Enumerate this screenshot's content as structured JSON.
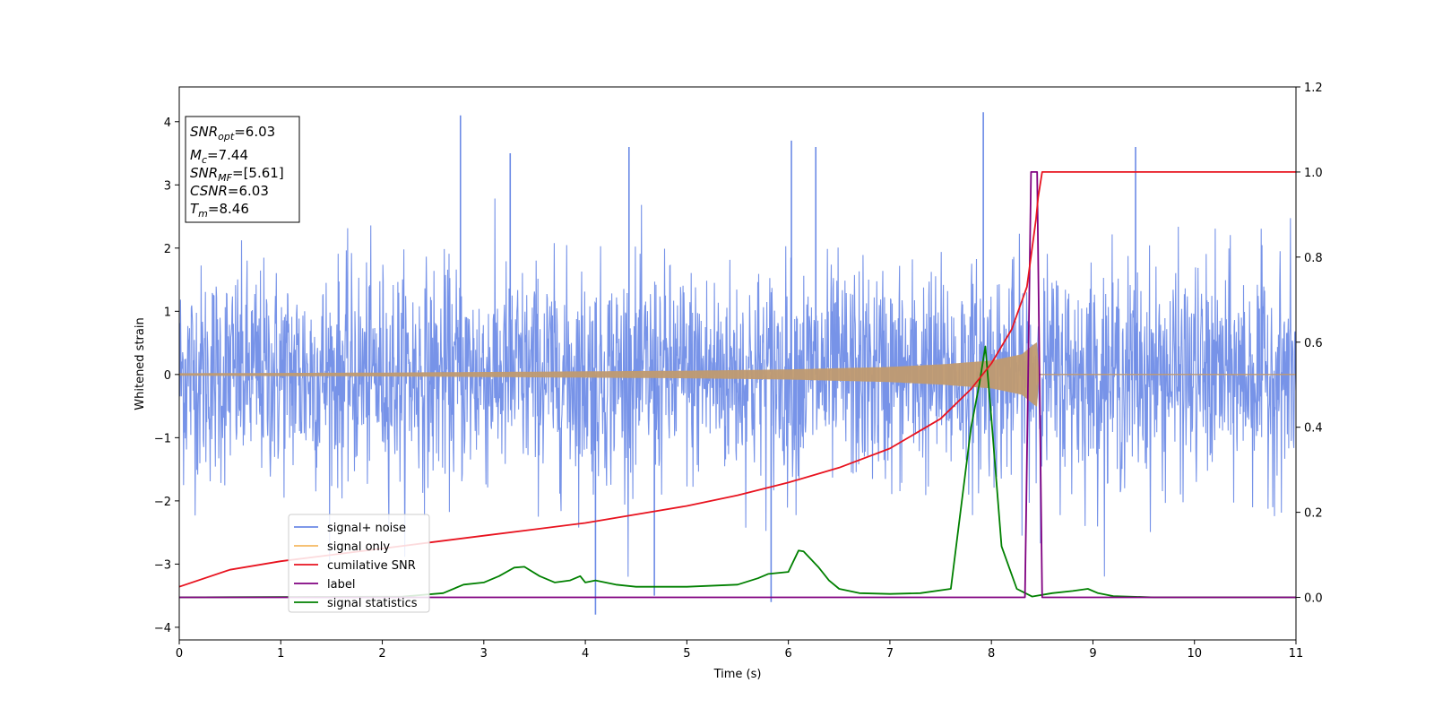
{
  "chart_data": {
    "type": "line",
    "xlabel": "Time (s)",
    "ylabel": "Whitened strain",
    "xlim": [
      0,
      11
    ],
    "ylim_left": [
      -4.2,
      4.55
    ],
    "ylim_right": [
      -0.1,
      1.2
    ],
    "x_ticks": [
      "0",
      "1",
      "2",
      "3",
      "4",
      "5",
      "6",
      "7",
      "8",
      "9",
      "10",
      "11"
    ],
    "y_left_ticks": [
      "4",
      "3",
      "2",
      "1",
      "0",
      "−1",
      "−2",
      "−3",
      "−4"
    ],
    "y_right_ticks": [
      "1.2",
      "1.0",
      "0.8",
      "0.6",
      "0.4",
      "0.2",
      "0.0"
    ],
    "info_box": {
      "snr_opt": {
        "name": "SNR",
        "sub": "opt",
        "value": "=6.03"
      },
      "mc": {
        "name": "M",
        "sub": "c",
        "value": "=7.44"
      },
      "snr_mf": {
        "name": "SNR",
        "sub": "MF",
        "value": "=[5.61]"
      },
      "csnr": {
        "name": "CSNR",
        "value": "=6.03"
      },
      "tm": {
        "name": "T",
        "sub": "m",
        "value": "=8.46"
      }
    },
    "legend": {
      "placement": "lower-left",
      "entries": [
        {
          "label": "signal+ noise",
          "color": "#6b8ae6"
        },
        {
          "label": "signal only",
          "color": "#f4b860"
        },
        {
          "label": "cumilative SNR",
          "color": "#e8131f"
        },
        {
          "label": "label",
          "color": "#800080"
        },
        {
          "label": "signal statistics",
          "color": "#008000"
        }
      ]
    },
    "series": [
      {
        "name": "signal+ noise",
        "axis": "left",
        "color": "#6b8ae6",
        "description_range": [
          -3.8,
          4.2
        ],
        "spikes": [
          [
            2.77,
            4.1
          ],
          [
            7.92,
            4.15
          ],
          [
            6.03,
            3.7
          ],
          [
            6.27,
            3.6
          ],
          [
            4.43,
            3.6
          ],
          [
            9.42,
            3.6
          ],
          [
            3.26,
            3.5
          ],
          [
            4.1,
            -3.8
          ],
          [
            5.83,
            -3.6
          ],
          [
            4.68,
            -3.5
          ]
        ]
      },
      {
        "name": "signal only",
        "axis": "left",
        "color": "#c09a70",
        "envelope": [
          [
            0,
            0.02
          ],
          [
            2,
            0.03
          ],
          [
            4,
            0.05
          ],
          [
            5,
            0.06
          ],
          [
            6,
            0.08
          ],
          [
            7,
            0.12
          ],
          [
            7.5,
            0.16
          ],
          [
            8.0,
            0.22
          ],
          [
            8.3,
            0.32
          ],
          [
            8.42,
            0.48
          ],
          [
            8.46,
            0.52
          ],
          [
            8.47,
            0.0
          ],
          [
            11,
            0.0
          ]
        ]
      },
      {
        "name": "cumilative SNR",
        "axis": "right",
        "color": "#e8131f",
        "x": [
          0,
          0.5,
          1,
          1.5,
          2,
          2.5,
          3,
          3.5,
          4,
          4.5,
          5,
          5.5,
          6,
          6.5,
          7,
          7.5,
          7.8,
          8.0,
          8.2,
          8.35,
          8.44,
          8.46,
          8.5,
          9,
          10,
          11
        ],
        "y": [
          0.025,
          0.065,
          0.085,
          0.1,
          0.115,
          0.13,
          0.145,
          0.16,
          0.175,
          0.195,
          0.215,
          0.24,
          0.27,
          0.305,
          0.35,
          0.42,
          0.49,
          0.55,
          0.63,
          0.73,
          0.89,
          0.94,
          1.0,
          1.0,
          1.0,
          1.0
        ]
      },
      {
        "name": "label",
        "axis": "right",
        "color": "#800080",
        "x": [
          0,
          8.33,
          8.39,
          8.45,
          8.5,
          11
        ],
        "y": [
          0.0,
          0.0,
          1.0,
          1.0,
          0.0,
          0.0
        ]
      },
      {
        "name": "signal statistics",
        "axis": "right",
        "color": "#008000",
        "x": [
          0,
          2.2,
          2.6,
          2.8,
          3.0,
          3.15,
          3.3,
          3.4,
          3.55,
          3.7,
          3.85,
          3.95,
          4.0,
          4.1,
          4.3,
          4.5,
          5.0,
          5.5,
          5.7,
          5.8,
          6.0,
          6.1,
          6.15,
          6.3,
          6.4,
          6.5,
          6.7,
          7.0,
          7.3,
          7.6,
          7.8,
          7.88,
          7.94,
          8.0,
          8.1,
          8.25,
          8.4,
          8.6,
          8.8,
          8.95,
          9.05,
          9.2,
          9.6,
          10,
          11
        ],
        "y": [
          0.0,
          0.002,
          0.01,
          0.03,
          0.035,
          0.05,
          0.07,
          0.072,
          0.05,
          0.035,
          0.04,
          0.05,
          0.035,
          0.04,
          0.03,
          0.025,
          0.025,
          0.03,
          0.045,
          0.055,
          0.06,
          0.11,
          0.108,
          0.07,
          0.04,
          0.02,
          0.01,
          0.008,
          0.01,
          0.02,
          0.4,
          0.5,
          0.59,
          0.42,
          0.12,
          0.02,
          0.002,
          0.01,
          0.015,
          0.02,
          0.01,
          0.003,
          0.0,
          0.0,
          0.0
        ]
      }
    ]
  }
}
